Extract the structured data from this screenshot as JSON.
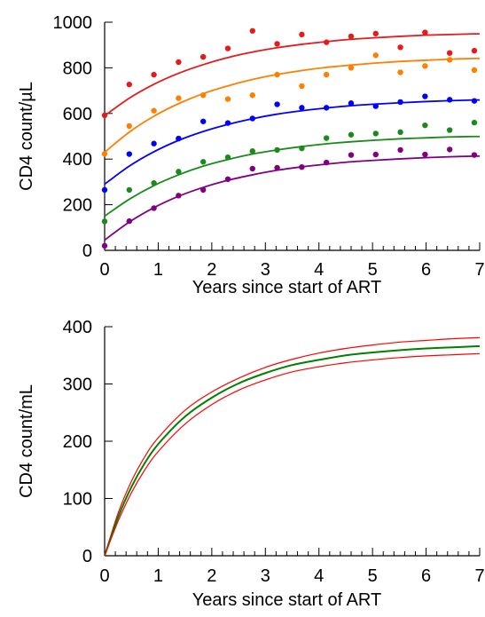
{
  "chart_data": [
    {
      "type": "scatter",
      "xlabel": "Years since start of ART",
      "ylabel": "CD4 count/µL",
      "xlim": [
        0,
        7
      ],
      "ylim": [
        0,
        1000
      ],
      "xticks": [
        "0",
        "1",
        "2",
        "3",
        "4",
        "5",
        "6",
        "7"
      ],
      "yticks": [
        "0",
        "200",
        "400",
        "600",
        "800",
        "1000"
      ],
      "grid": false,
      "fit_lines": true,
      "series": [
        {
          "color": "#e41a1c",
          "x": [
            0,
            0.46,
            0.92,
            1.38,
            1.84,
            2.3,
            2.76,
            3.22,
            3.68,
            4.14,
            4.6,
            5.06,
            5.52,
            5.98,
            6.44,
            6.9
          ],
          "y": [
            592,
            727,
            770,
            825,
            848,
            885,
            962,
            905,
            946,
            912,
            938,
            950,
            890,
            955,
            865,
            875
          ],
          "fit": [
            590,
            667,
            728,
            776,
            814,
            845,
            869,
            888,
            903,
            915,
            925,
            932,
            938,
            943,
            946,
            949
          ]
        },
        {
          "color": "#ff7f00",
          "x": [
            0,
            0.46,
            0.92,
            1.38,
            1.84,
            2.3,
            2.76,
            3.22,
            3.68,
            4.14,
            4.6,
            5.06,
            5.52,
            5.98,
            6.44,
            6.9
          ],
          "y": [
            423,
            545,
            612,
            667,
            680,
            663,
            680,
            770,
            720,
            770,
            800,
            855,
            780,
            808,
            835,
            790
          ],
          "fit": [
            430,
            518,
            588,
            643,
            687,
            721,
            749,
            771,
            788,
            802,
            812,
            821,
            828,
            833,
            838,
            841
          ]
        },
        {
          "color": "#0000ff",
          "x": [
            0,
            0.46,
            0.92,
            1.38,
            1.84,
            2.3,
            2.76,
            3.22,
            3.68,
            4.14,
            4.6,
            5.06,
            5.52,
            5.98,
            6.44,
            6.9
          ],
          "y": [
            265,
            422,
            468,
            490,
            565,
            558,
            578,
            640,
            625,
            625,
            645,
            632,
            650,
            675,
            660,
            655
          ],
          "fit": [
            290,
            369,
            432,
            482,
            521,
            552,
            577,
            597,
            612,
            624,
            634,
            641,
            647,
            652,
            656,
            659
          ]
        },
        {
          "color": "#1a8a1a",
          "x": [
            0,
            0.46,
            0.92,
            1.38,
            1.84,
            2.3,
            2.76,
            3.22,
            3.68,
            4.14,
            4.6,
            5.06,
            5.52,
            5.98,
            6.44,
            6.9
          ],
          "y": [
            127,
            265,
            295,
            345,
            388,
            408,
            435,
            440,
            447,
            492,
            507,
            512,
            518,
            548,
            527,
            560
          ],
          "fit": [
            150,
            224,
            284,
            331,
            369,
            398,
            422,
            440,
            455,
            467,
            476,
            483,
            489,
            493,
            497,
            499
          ]
        },
        {
          "color": "#800080",
          "x": [
            0,
            0.46,
            0.92,
            1.38,
            1.84,
            2.3,
            2.76,
            3.22,
            3.68,
            4.14,
            4.6,
            5.06,
            5.52,
            5.98,
            6.44,
            6.9
          ],
          "y": [
            20,
            128,
            185,
            240,
            265,
            312,
            358,
            362,
            365,
            385,
            418,
            420,
            440,
            420,
            442,
            418
          ],
          "fit": [
            45,
            124,
            187,
            237,
            276,
            307,
            331,
            351,
            366,
            378,
            388,
            395,
            401,
            406,
            410,
            413
          ]
        }
      ]
    },
    {
      "type": "line",
      "xlabel": "Years since start of ART",
      "ylabel": "CD4 count/mL",
      "xlim": [
        0,
        7
      ],
      "ylim": [
        0,
        400
      ],
      "xticks": [
        "0",
        "1",
        "2",
        "3",
        "4",
        "5",
        "6",
        "7"
      ],
      "yticks": [
        "0",
        "100",
        "200",
        "300",
        "400"
      ],
      "grid": false,
      "series": [
        {
          "color": "#ff0000",
          "x": [
            0,
            0.25,
            0.5,
            0.75,
            1,
            1.5,
            2,
            2.5,
            3,
            3.5,
            4,
            4.5,
            5,
            5.5,
            6,
            6.5,
            7
          ],
          "y": [
            0,
            74,
            130,
            173,
            206,
            254,
            286,
            310,
            329,
            343,
            354,
            362,
            368,
            373,
            376,
            379,
            381
          ]
        },
        {
          "color": "#008000",
          "x": [
            0,
            0.25,
            0.5,
            0.75,
            1,
            1.5,
            2,
            2.5,
            3,
            3.5,
            4,
            4.5,
            5,
            5.5,
            6,
            6.5,
            7
          ],
          "y": [
            0,
            67,
            120,
            162,
            195,
            243,
            276,
            301,
            319,
            333,
            342,
            350,
            355,
            359,
            362,
            364,
            366
          ]
        },
        {
          "color": "#ff0000",
          "x": [
            0,
            0.25,
            0.5,
            0.75,
            1,
            1.5,
            2,
            2.5,
            3,
            3.5,
            4,
            4.5,
            5,
            5.5,
            6,
            6.5,
            7
          ],
          "y": [
            0,
            60,
            110,
            150,
            182,
            230,
            264,
            289,
            307,
            321,
            330,
            337,
            342,
            346,
            349,
            351,
            353
          ]
        }
      ]
    }
  ]
}
